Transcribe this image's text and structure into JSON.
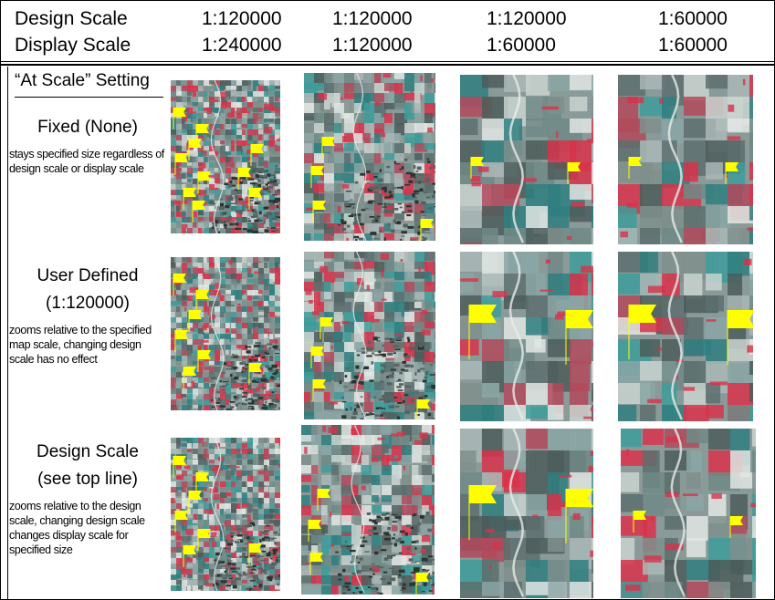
{
  "header": {
    "design_scale_label": "Design Scale",
    "display_scale_label": "Display Scale",
    "design_scales": [
      "1:120000",
      "1:120000",
      "1:120000",
      "1:60000"
    ],
    "display_scales": [
      "1:240000",
      "1:120000",
      "1:60000",
      "1:60000"
    ]
  },
  "setting_header": "“At Scale” Setting",
  "rows": [
    {
      "name": "Fixed (None)",
      "subname": "",
      "description": "stays specified size regardless of design scale or display scale"
    },
    {
      "name": "User Defined",
      "subname": "(1:120000)",
      "description": "zooms relative to the specified map scale, changing design scale has no effect"
    },
    {
      "name": "Design Scale",
      "subname": "(see top line)",
      "description": "zooms relative to the design scale, changing design scale changes display scale for specified size"
    }
  ],
  "colors": {
    "flag": "#ffff00",
    "vegetation": "#d8324a",
    "field_cyan": "#3e9c9a",
    "rule": "#000000"
  },
  "icons": [
    "flag-marker-icon"
  ]
}
